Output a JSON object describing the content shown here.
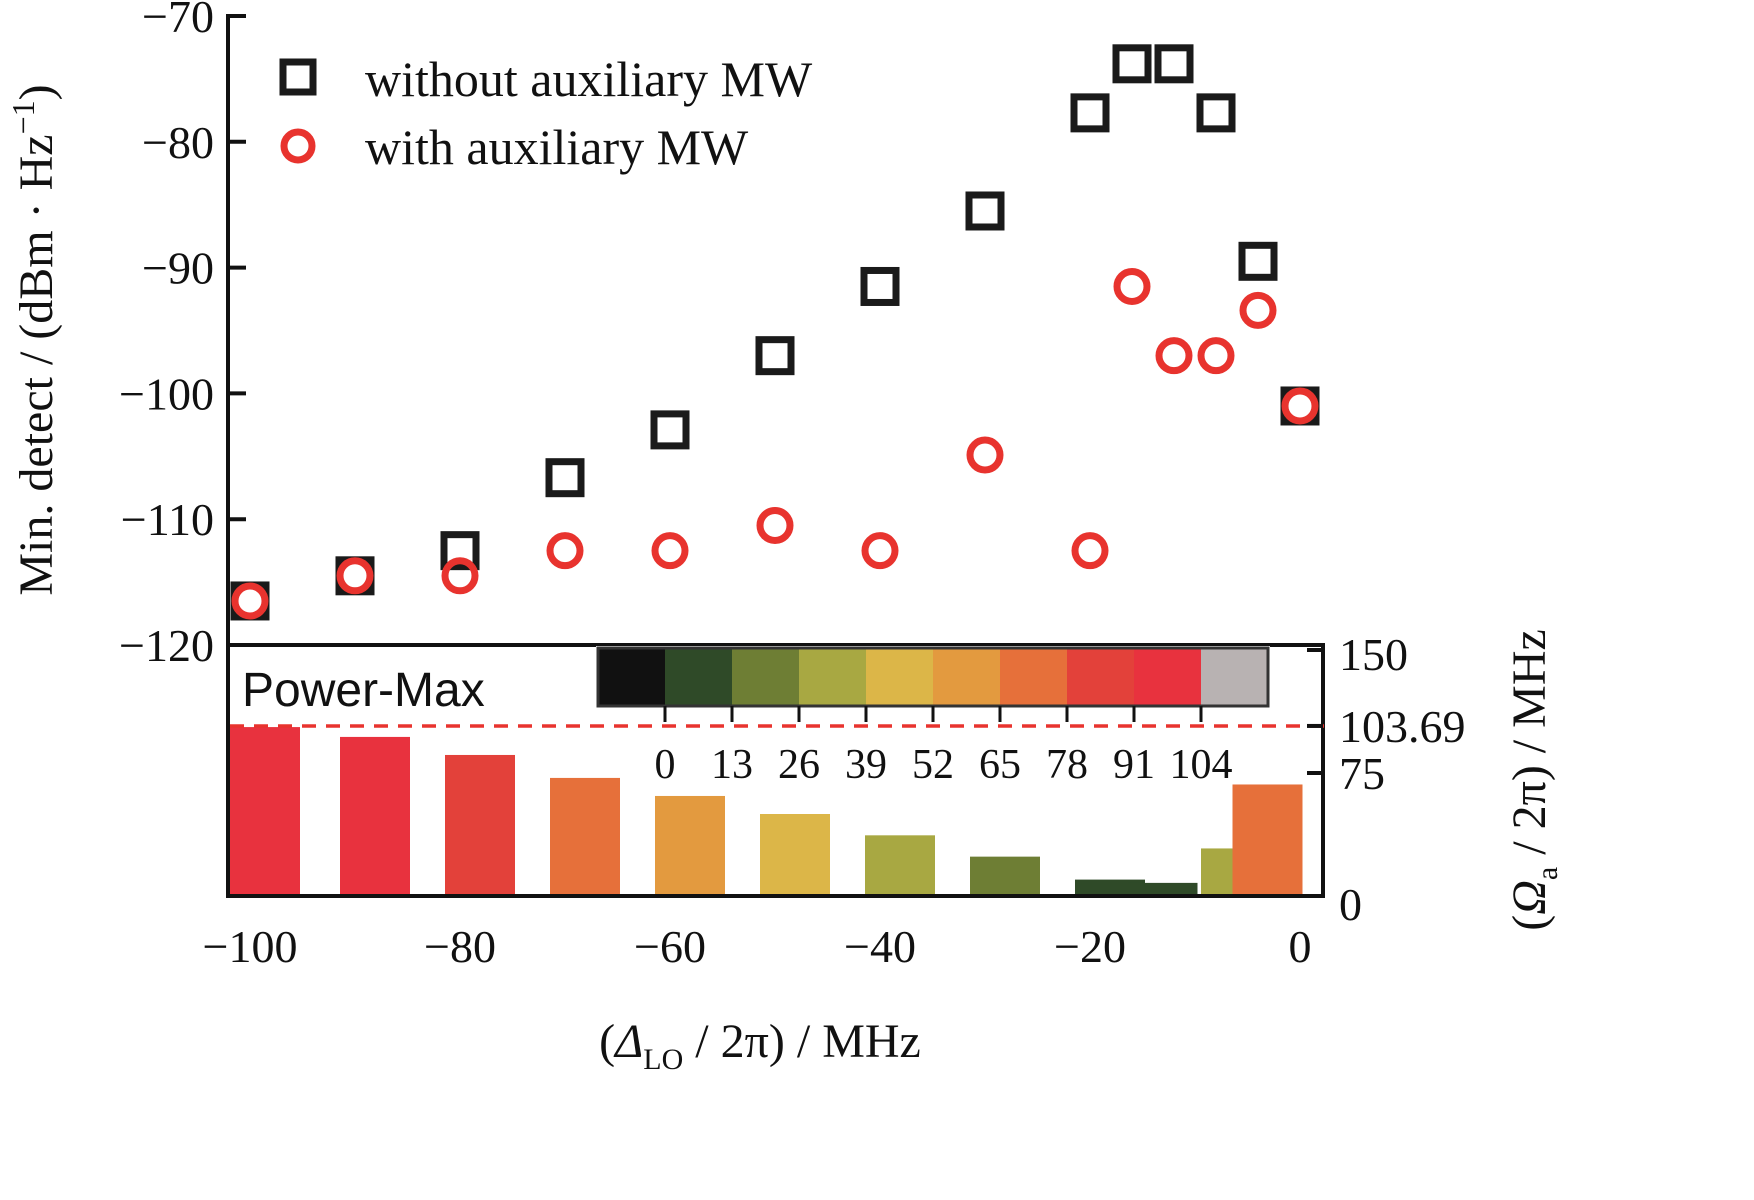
{
  "chart_data": {
    "type": "scatter",
    "x_axis": {
      "label_main": "(",
      "label_symbol": "Δ",
      "label_sub": "LO",
      "label_rest": " / 2π) / MHz",
      "range": [
        -100,
        0
      ],
      "ticks": [
        -100,
        -80,
        -60,
        -40,
        -20,
        0
      ],
      "tick_labels": [
        "−100",
        "−80",
        "−60",
        "−40",
        "−20",
        "0"
      ]
    },
    "y_axis": {
      "label_main": "Min. detect / (dBm · Hz",
      "label_sup": "−1",
      "label_end": ")",
      "range": [
        -120,
        -70
      ],
      "ticks": [
        -120,
        -110,
        -100,
        -90,
        -80,
        -70
      ],
      "tick_labels": [
        "−120",
        "−110",
        "−100",
        "−90",
        "−80",
        "−70"
      ]
    },
    "series": [
      {
        "name": "without auxiliary MW",
        "marker": "square",
        "color": "#1a1a1a",
        "points": [
          [
            -100,
            -116.5
          ],
          [
            -90,
            -114.5
          ],
          [
            -80,
            -112.5
          ],
          [
            -70,
            -106.7
          ],
          [
            -60,
            -102.9
          ],
          [
            -50,
            -97.0
          ],
          [
            -40,
            -91.5
          ],
          [
            -30,
            -85.5
          ],
          [
            -20,
            -77.7
          ],
          [
            -16,
            -73.8
          ],
          [
            -12,
            -73.8
          ],
          [
            -8,
            -77.7
          ],
          [
            -4,
            -89.5
          ],
          [
            0,
            -101.0
          ]
        ]
      },
      {
        "name": "with auxiliary MW",
        "marker": "circle",
        "color": "#e8332e",
        "points": [
          [
            -100,
            -116.5
          ],
          [
            -90,
            -114.5
          ],
          [
            -80,
            -114.5
          ],
          [
            -70,
            -112.5
          ],
          [
            -60,
            -112.5
          ],
          [
            -50,
            -110.5
          ],
          [
            -40,
            -112.5
          ],
          [
            -30,
            -104.9
          ],
          [
            -20,
            -112.5
          ],
          [
            -16,
            -91.5
          ],
          [
            -12,
            -97.0
          ],
          [
            -8,
            -97.0
          ],
          [
            -4,
            -93.4
          ],
          [
            0,
            -101.0
          ]
        ]
      }
    ],
    "inset": {
      "type": "bar",
      "label": "Power-Max",
      "y_axis": {
        "label_open": "(",
        "label_symbol": "Ω",
        "label_sub": "a",
        "label_rest": " / 2π) / MHz",
        "range": [
          0,
          150
        ],
        "ticks": [
          0,
          75,
          103.69,
          150
        ],
        "tick_labels": [
          "0",
          "75",
          "103.69",
          "150"
        ]
      },
      "reference_line": {
        "value": 103.69,
        "color": "#e8332e",
        "style": "dashed"
      },
      "bars": [
        {
          "x": -100,
          "value": 103
        },
        {
          "x": -90,
          "value": 97
        },
        {
          "x": -80,
          "value": 86
        },
        {
          "x": -70,
          "value": 72
        },
        {
          "x": -60,
          "value": 61
        },
        {
          "x": -50,
          "value": 50
        },
        {
          "x": -40,
          "value": 37
        },
        {
          "x": -30,
          "value": 24
        },
        {
          "x": -20,
          "value": 10
        },
        {
          "x": -15,
          "value": 8
        },
        {
          "x": -8,
          "value": 29
        },
        {
          "x": -5,
          "value": 68
        }
      ],
      "colorbar": {
        "bounds": [
          0,
          13,
          26,
          39,
          52,
          65,
          78,
          91,
          104
        ],
        "tick_labels": [
          "0",
          "13",
          "26",
          "39",
          "52",
          "65",
          "78",
          "91",
          "104"
        ],
        "colors": [
          "#111111",
          "#2f4a28",
          "#6e7e34",
          "#a8a842",
          "#dcb648",
          "#e39a3f",
          "#e6703a",
          "#e3413a",
          "#e8323e",
          "#b8b2b2"
        ]
      }
    }
  }
}
